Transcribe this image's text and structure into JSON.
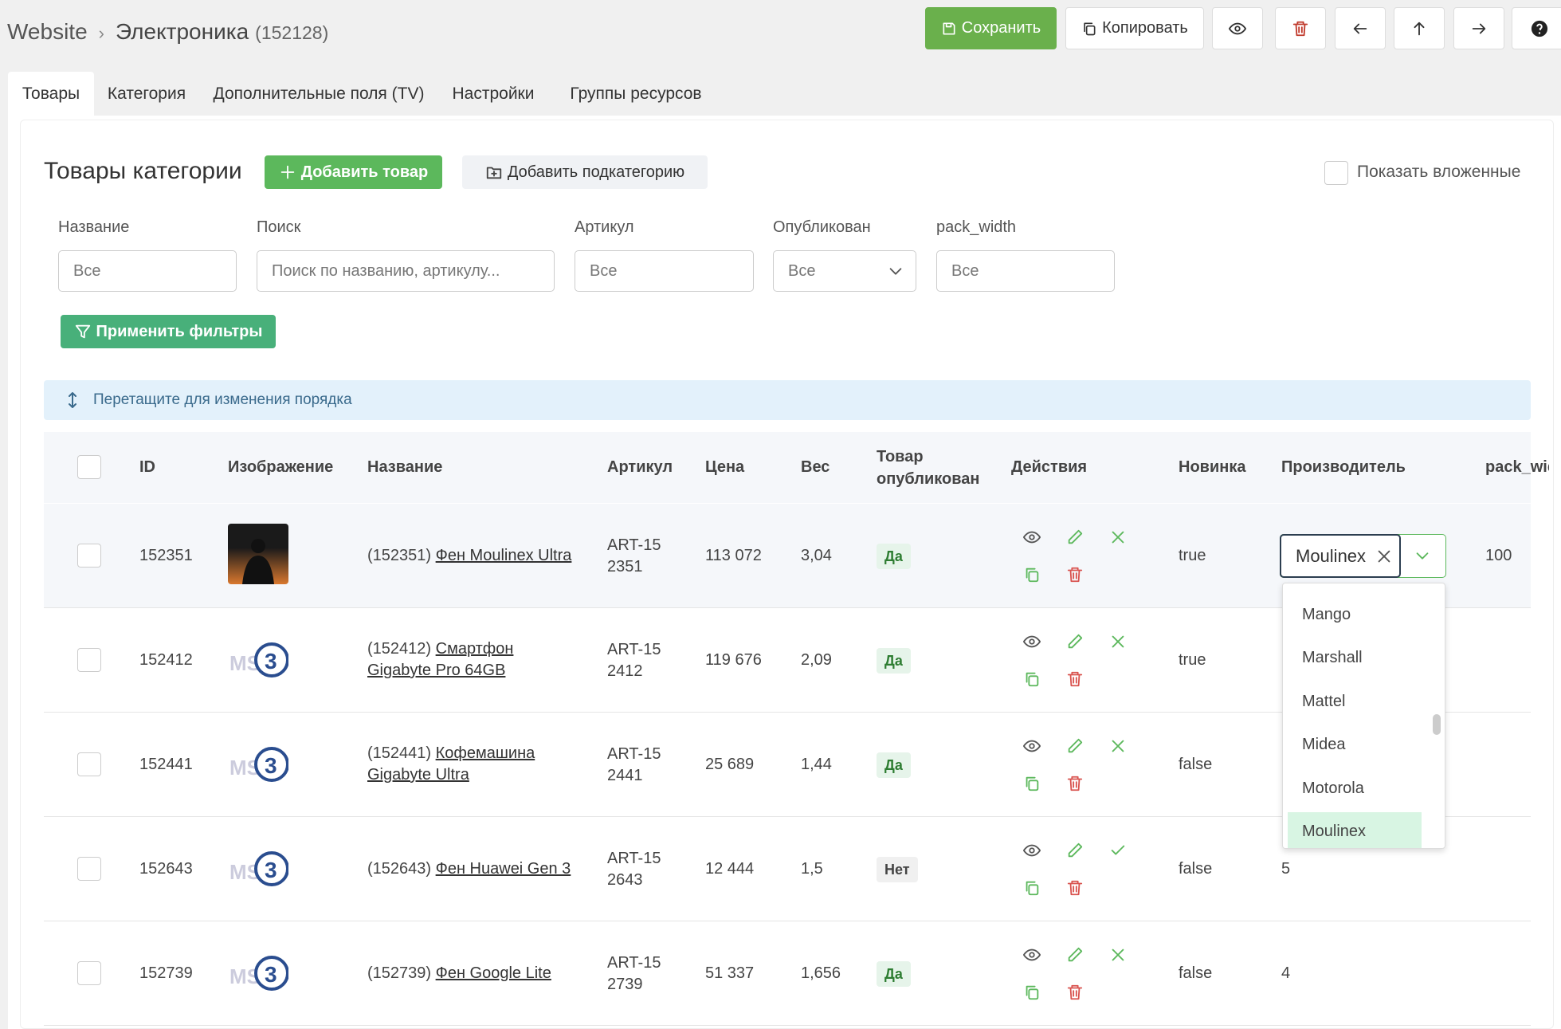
{
  "breadcrumb": {
    "root": "Website",
    "current": "Электроника",
    "id": "(152128)"
  },
  "toolbar": {
    "save": "Сохранить",
    "copy": "Копировать"
  },
  "tabs": [
    "Товары",
    "Категория",
    "Дополнительные поля (TV)",
    "Настройки",
    "Группы ресурсов"
  ],
  "section": {
    "title": "Товары категории",
    "add_product": "Добавить товар",
    "add_subcategory": "Добавить подкатегорию",
    "show_nested": "Показать вложенные"
  },
  "filters": [
    {
      "label": "Название",
      "placeholder": "Все"
    },
    {
      "label": "Поиск",
      "placeholder": "Поиск по названию, артикулу..."
    },
    {
      "label": "Артикул",
      "placeholder": "Все"
    },
    {
      "label": "Опубликован",
      "placeholder": "Все"
    },
    {
      "label": "pack_width",
      "placeholder": "Все"
    }
  ],
  "apply": "Применить фильтры",
  "notice": "Перетащите для изменения порядка",
  "table": {
    "headers": [
      "ID",
      "Изображение",
      "Название",
      "Артикул",
      "Цена",
      "Вес",
      "Товар опубликован",
      "Действия",
      "Новинка",
      "Производитель",
      "pack_width"
    ],
    "rows": [
      {
        "id": "152351",
        "prefix": "(152351)",
        "name": "Фен Moulinex Ultra",
        "article": "ART-152351",
        "price": "113 072",
        "weight": "3,04",
        "published": "Да",
        "is_published": true,
        "new": "true",
        "manufacturer": null,
        "pack_width": "100",
        "photo": true
      },
      {
        "id": "152412",
        "prefix": "(152412)",
        "name": "Смартфон Gigabyte Pro 64GB",
        "article": "ART-152412",
        "price": "119 676",
        "weight": "2,09",
        "published": "Да",
        "is_published": true,
        "new": "true",
        "manufacturer": null,
        "pack_width": null,
        "photo": false
      },
      {
        "id": "152441",
        "prefix": "(152441)",
        "name": "Кофемашина Gigabyte Ultra",
        "article": "ART-152441",
        "price": "25 689",
        "weight": "1,44",
        "published": "Да",
        "is_published": true,
        "new": "false",
        "manufacturer": null,
        "pack_width": null,
        "photo": false
      },
      {
        "id": "152643",
        "prefix": "(152643)",
        "name": "Фен Huawei Gen 3",
        "article": "ART-152643",
        "price": "12 444",
        "weight": "1,5",
        "published": "Нет",
        "is_published": false,
        "new": "false",
        "manufacturer": "5",
        "pack_width": null,
        "photo": false
      },
      {
        "id": "152739",
        "prefix": "(152739)",
        "name": "Фен Google Lite",
        "article": "ART-152739",
        "price": "51 337",
        "weight": "1,656",
        "published": "Да",
        "is_published": true,
        "new": "false",
        "manufacturer": "4",
        "pack_width": null,
        "photo": false
      }
    ]
  },
  "dropdown": {
    "value": "Moulinex",
    "options": [
      "Mango",
      "Marshall",
      "Mattel",
      "Midea",
      "Motorola",
      "Moulinex"
    ],
    "selected": 5
  }
}
